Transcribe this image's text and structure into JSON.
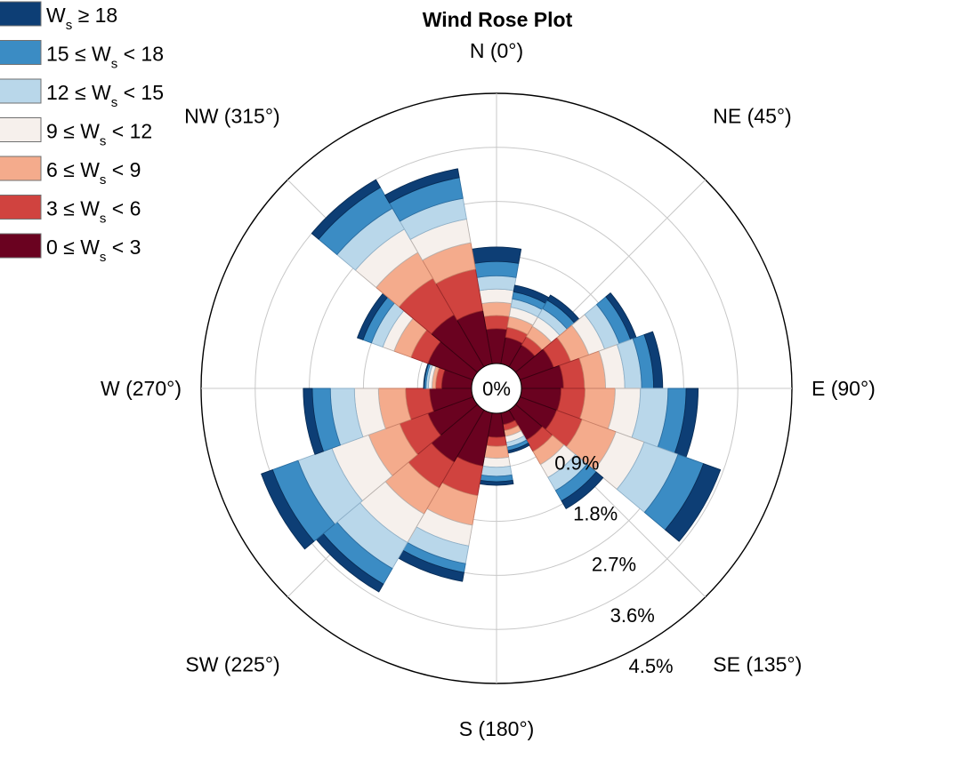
{
  "chart_data": {
    "type": "wind-rose",
    "title": "Wind Rose Plot",
    "direction_labels": [
      {
        "angle": 0,
        "label": "N (0°)"
      },
      {
        "angle": 45,
        "label": "NE (45°)"
      },
      {
        "angle": 90,
        "label": "E (90°)"
      },
      {
        "angle": 135,
        "label": "SE (135°)"
      },
      {
        "angle": 180,
        "label": "S (180°)"
      },
      {
        "angle": 225,
        "label": "SW (225°)"
      },
      {
        "angle": 270,
        "label": "W (270°)"
      },
      {
        "angle": 315,
        "label": "NW (315°)"
      }
    ],
    "radial_axis": {
      "center_label": "0%",
      "ticks": [
        0.9,
        1.8,
        2.7,
        3.6,
        4.5
      ],
      "tick_labels": [
        "0.9%",
        "1.8%",
        "2.7%",
        "3.6%",
        "4.5%"
      ],
      "max": 4.5,
      "label_angle": 160,
      "grid": true
    },
    "legend": {
      "placement": "top-left",
      "entries": [
        {
          "lead": "W",
          "sub": "s",
          "rest": " ≥ 18",
          "color": "#0d3e75"
        },
        {
          "lead": "15 ≤ W",
          "sub": "s",
          "rest": " < 18",
          "color": "#3b8cc4"
        },
        {
          "lead": "12 ≤ W",
          "sub": "s",
          "rest": " < 15",
          "color": "#b9d7ea"
        },
        {
          "lead": "9 ≤ W",
          "sub": "s",
          "rest": " < 12",
          "color": "#f6f0ec"
        },
        {
          "lead": "6 ≤ W",
          "sub": "s",
          "rest": " < 9",
          "color": "#f4ab8c"
        },
        {
          "lead": "3 ≤ W",
          "sub": "s",
          "rest": " < 6",
          "color": "#d0433f"
        },
        {
          "lead": "0 ≤ W",
          "sub": "s",
          "rest": " < 3",
          "color": "#6a0220"
        }
      ]
    },
    "bin_order_inner_to_outer": [
      "0-3",
      "3-6",
      "6-9",
      "9-12",
      "12-15",
      "15-18",
      ">=18"
    ],
    "bin_colors_inner_to_outer": [
      "#6a0220",
      "#d0433f",
      "#f4ab8c",
      "#f6f0ec",
      "#b9d7ea",
      "#3b8cc4",
      "#0d3e75"
    ],
    "sector_width_deg": 20,
    "sectors": [
      {
        "direction": 0,
        "cumulative": [
          0.58,
          0.8,
          1.02,
          1.24,
          1.46,
          1.7,
          1.94
        ]
      },
      {
        "direction": 20,
        "cumulative": [
          0.45,
          0.62,
          0.8,
          0.96,
          1.1,
          1.22,
          1.33
        ]
      },
      {
        "direction": 40,
        "cumulative": [
          0.42,
          0.58,
          0.78,
          0.96,
          1.12,
          1.28,
          1.38
        ]
      },
      {
        "direction": 60,
        "cumulative": [
          0.6,
          0.9,
          1.22,
          1.5,
          1.76,
          1.96,
          2.06
        ]
      },
      {
        "direction": 80,
        "cumulative": [
          0.7,
          1.05,
          1.4,
          1.72,
          2.0,
          2.2,
          2.35
        ]
      },
      {
        "direction": 100,
        "cumulative": [
          0.66,
          1.06,
          1.56,
          1.98,
          2.44,
          2.74,
          2.94
        ]
      },
      {
        "direction": 120,
        "cumulative": [
          0.65,
          1.1,
          1.7,
          2.2,
          2.8,
          3.25,
          3.55
        ]
      },
      {
        "direction": 140,
        "cumulative": [
          0.58,
          0.8,
          1.05,
          1.3,
          1.55,
          1.75,
          1.9
        ]
      },
      {
        "direction": 160,
        "cumulative": [
          0.2,
          0.3,
          0.4,
          0.5,
          0.58,
          0.64,
          0.68
        ]
      },
      {
        "direction": 180,
        "cumulative": [
          0.4,
          0.55,
          0.75,
          0.9,
          1.05,
          1.14,
          1.2
        ]
      },
      {
        "direction": 200,
        "cumulative": [
          0.9,
          1.4,
          1.9,
          2.25,
          2.55,
          2.7,
          2.85
        ]
      },
      {
        "direction": 220,
        "cumulative": [
          1.0,
          1.5,
          2.0,
          2.55,
          3.05,
          3.35,
          3.5
        ]
      },
      {
        "direction": 240,
        "cumulative": [
          0.8,
          1.3,
          1.85,
          2.5,
          3.1,
          3.55,
          3.75
        ]
      },
      {
        "direction": 260,
        "cumulative": [
          0.7,
          1.1,
          1.55,
          1.95,
          2.35,
          2.65,
          2.8
        ]
      },
      {
        "direction": 280,
        "cumulative": [
          0.5,
          0.6,
          0.66,
          0.72,
          0.76,
          0.79,
          0.8
        ]
      },
      {
        "direction": 300,
        "cumulative": [
          0.8,
          1.1,
          1.4,
          1.6,
          1.8,
          1.95,
          2.05
        ]
      },
      {
        "direction": 320,
        "cumulative": [
          1.0,
          1.7,
          2.2,
          2.65,
          3.05,
          3.45,
          3.6
        ]
      },
      {
        "direction": 340,
        "cumulative": [
          0.9,
          1.6,
          2.05,
          2.45,
          2.8,
          3.15,
          3.3
        ]
      }
    ]
  }
}
